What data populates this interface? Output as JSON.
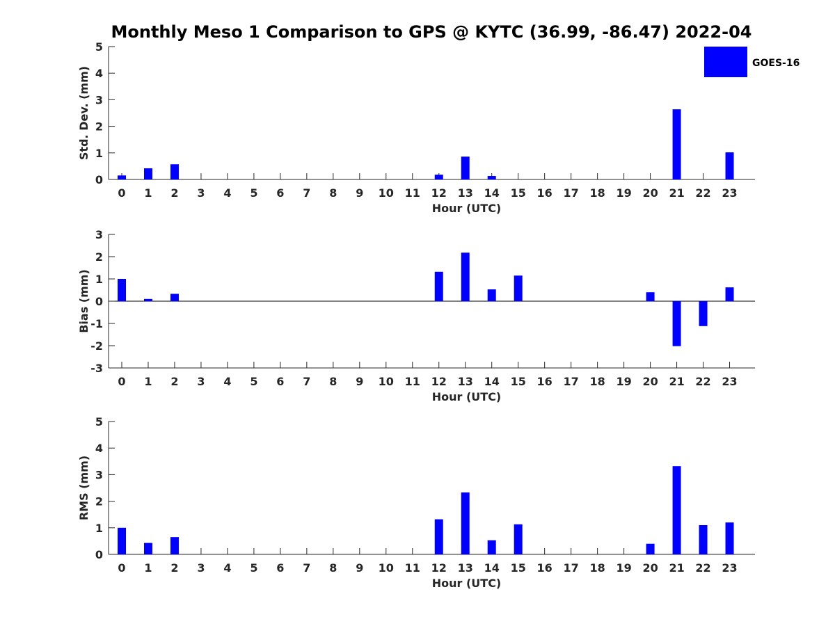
{
  "title": "Monthly Meso 1 Comparison to GPS @ KYTC (36.99, -86.47) 2022-04",
  "legend": {
    "label": "GOES-16",
    "color": "#0000ff",
    "placement": "top-right"
  },
  "chart_data": [
    {
      "type": "bar",
      "ylabel": "Std. Dev. (mm)",
      "xlabel": "Hour (UTC)",
      "ylim": [
        0,
        5
      ],
      "yticks": [
        0,
        1,
        2,
        3,
        4,
        5
      ],
      "categories": [
        "0",
        "1",
        "2",
        "3",
        "4",
        "5",
        "6",
        "7",
        "8",
        "9",
        "10",
        "11",
        "12",
        "13",
        "14",
        "15",
        "16",
        "17",
        "18",
        "19",
        "20",
        "21",
        "22",
        "23"
      ],
      "series": [
        {
          "name": "GOES-16",
          "color": "#0000ff",
          "values": [
            0.15,
            0.42,
            0.57,
            null,
            null,
            null,
            null,
            null,
            null,
            null,
            null,
            null,
            0.18,
            0.86,
            0.13,
            null,
            null,
            null,
            null,
            null,
            null,
            2.64,
            null,
            1.02
          ]
        }
      ]
    },
    {
      "type": "bar",
      "ylabel": "Bias (mm)",
      "xlabel": "Hour (UTC)",
      "ylim": [
        -3,
        3
      ],
      "yticks": [
        -3,
        -2,
        -1,
        0,
        1,
        2,
        3
      ],
      "categories": [
        "0",
        "1",
        "2",
        "3",
        "4",
        "5",
        "6",
        "7",
        "8",
        "9",
        "10",
        "11",
        "12",
        "13",
        "14",
        "15",
        "16",
        "17",
        "18",
        "19",
        "20",
        "21",
        "22",
        "23"
      ],
      "series": [
        {
          "name": "GOES-16",
          "color": "#0000ff",
          "values": [
            1.0,
            0.1,
            0.33,
            null,
            null,
            null,
            null,
            null,
            null,
            null,
            null,
            null,
            1.32,
            2.18,
            0.53,
            1.15,
            null,
            null,
            null,
            null,
            0.4,
            -2.02,
            -1.12,
            0.62
          ]
        }
      ]
    },
    {
      "type": "bar",
      "ylabel": "RMS (mm)",
      "xlabel": "Hour (UTC)",
      "ylim": [
        0,
        5
      ],
      "yticks": [
        0,
        1,
        2,
        3,
        4,
        5
      ],
      "categories": [
        "0",
        "1",
        "2",
        "3",
        "4",
        "5",
        "6",
        "7",
        "8",
        "9",
        "10",
        "11",
        "12",
        "13",
        "14",
        "15",
        "16",
        "17",
        "18",
        "19",
        "20",
        "21",
        "22",
        "23"
      ],
      "series": [
        {
          "name": "GOES-16",
          "color": "#0000ff",
          "values": [
            1.0,
            0.43,
            0.65,
            null,
            null,
            null,
            null,
            null,
            null,
            null,
            null,
            null,
            1.32,
            2.33,
            0.53,
            1.13,
            null,
            null,
            null,
            null,
            0.4,
            3.32,
            1.1,
            1.2
          ]
        }
      ]
    }
  ]
}
